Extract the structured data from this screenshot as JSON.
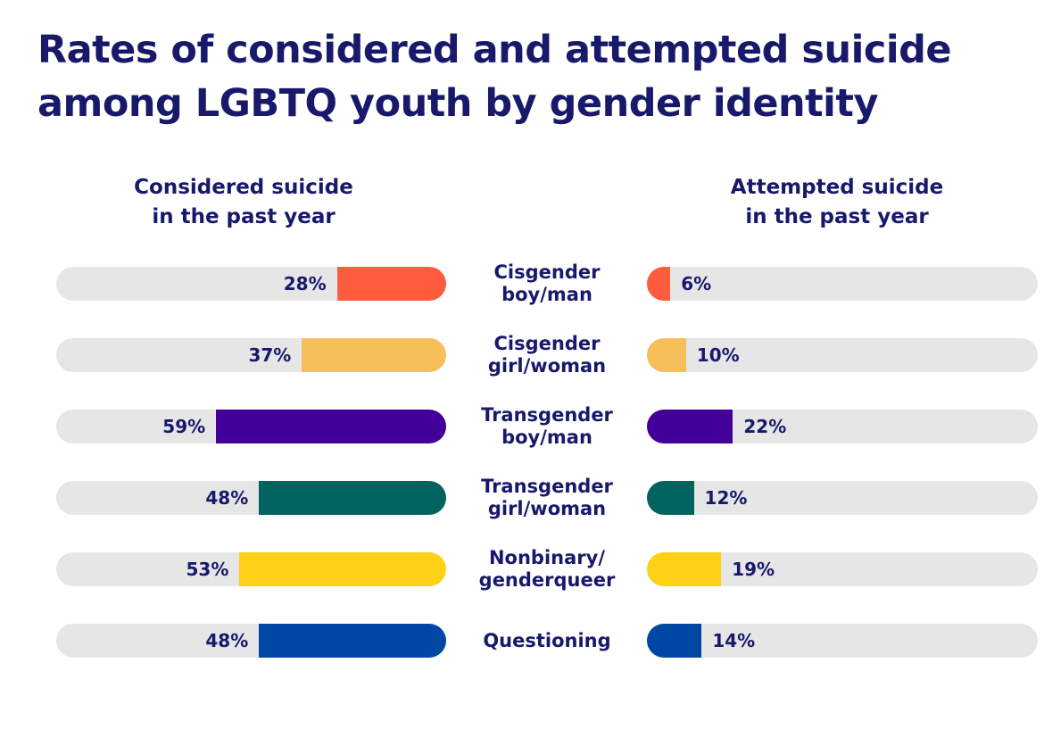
{
  "chart_data": {
    "type": "bar",
    "title": "Rates of considered and attempted suicide among LGBTQ youth by gender identity",
    "categories": [
      "Cisgender\nboy/man",
      "Cisgender\ngirl/woman",
      "Transgender\nboy/man",
      "Transgender\ngirl/woman",
      "Nonbinary/\ngenderqueer",
      "Questioning"
    ],
    "colors": [
      "#ff5c3d",
      "#f7bf5a",
      "#430099",
      "#00635f",
      "#fdd116",
      "#0046a3"
    ],
    "xlim": [
      0,
      100
    ],
    "series": [
      {
        "name": "Considered suicide\nin the past year",
        "values": [
          28,
          37,
          59,
          48,
          53,
          48
        ],
        "value_labels": [
          "28%",
          "37%",
          "59%",
          "48%",
          "53%",
          "48%"
        ]
      },
      {
        "name": "Attempted suicide\nin the past year",
        "values": [
          6,
          10,
          22,
          12,
          19,
          14
        ],
        "value_labels": [
          "6%",
          "10%",
          "22%",
          "12%",
          "19%",
          "14%"
        ]
      }
    ]
  }
}
